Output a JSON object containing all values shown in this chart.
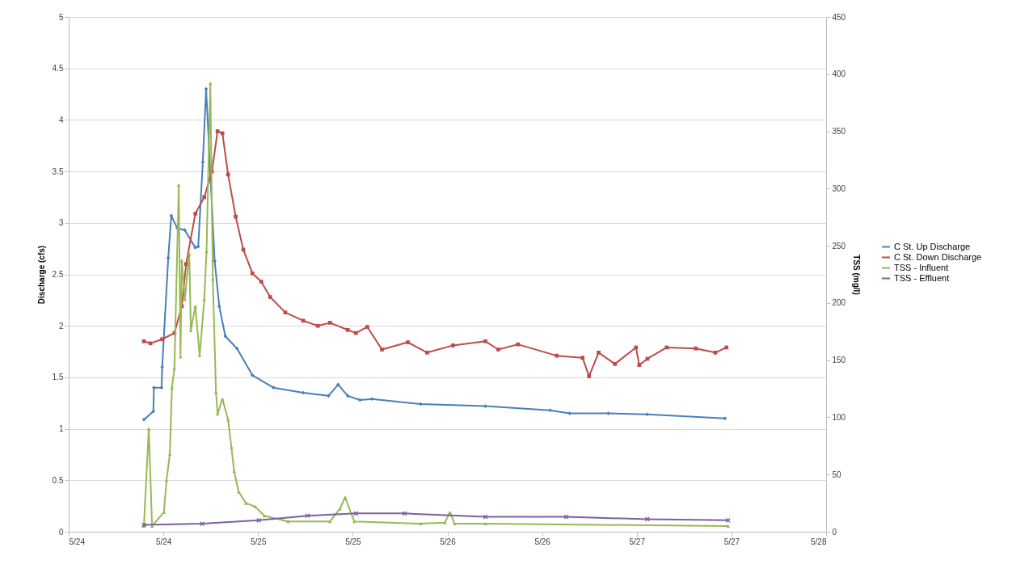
{
  "chart_data": {
    "type": "line",
    "ylabel": "Discharge (cfs)",
    "y2label": "TSS (mg/l)",
    "xlim": [
      "--05-24",
      "--05-28"
    ],
    "xticks": [
      {
        "value": "--05-24",
        "label": "5/24"
      },
      {
        "value": "--05-24T12:00",
        "label": "5/24"
      },
      {
        "value": "--05-25",
        "label": "5/25"
      },
      {
        "value": "--05-25T12:00",
        "label": "5/25"
      },
      {
        "value": "--05-26",
        "label": "5/26"
      },
      {
        "value": "--05-26T12:00",
        "label": "5/26"
      },
      {
        "value": "--05-27",
        "label": "5/27"
      },
      {
        "value": "--05-27T12:00",
        "label": "5/27"
      },
      {
        "value": "--05-28",
        "label": "5/28"
      }
    ],
    "ylim": [
      0,
      5
    ],
    "yticks": [
      0,
      0.5,
      1,
      1.5,
      2,
      2.5,
      3,
      3.5,
      4,
      4.5,
      5
    ],
    "y2lim": [
      0,
      450
    ],
    "y2ticks": [
      0,
      50,
      100,
      150,
      200,
      250,
      300,
      350,
      400,
      450
    ],
    "grid": "y",
    "legend": "right",
    "series": [
      {
        "name": "C St. Up Discharge",
        "color": "#4a7ebb",
        "marker": "diamond",
        "x": [
          "--05-24T09:32",
          "--05-24T10:44",
          "--05-24T10:48",
          "--05-24T11:46",
          "--05-24T11:51",
          "--05-24T12:37",
          "--05-24T13:00",
          "--05-24T13:45",
          "--05-24T14:43",
          "--05-24T16:03",
          "--05-24T16:25",
          "--05-24T17:00",
          "--05-24T17:25",
          "--05-24T18:30",
          "--05-24T19:05",
          "--05-24T19:51",
          "--05-24T21:20",
          "--05-24T23:17",
          "--05-25T01:57",
          "--05-25T05:44",
          "--05-25T08:56",
          "--05-25T10:09",
          "--05-25T11:22",
          "--05-25T12:55",
          "--05-25T14:28",
          "--05-25T20:37",
          "--05-26T04:49",
          "--05-26T13:02",
          "--05-26T15:29",
          "--05-26T20:24",
          "--05-27T01:21",
          "--05-27T11:11"
        ],
        "values": [
          1.09,
          1.17,
          1.4,
          1.4,
          1.6,
          2.66,
          3.07,
          2.95,
          2.93,
          2.76,
          2.77,
          3.59,
          4.3,
          2.63,
          2.19,
          1.9,
          1.78,
          1.52,
          1.4,
          1.35,
          1.32,
          1.43,
          1.32,
          1.28,
          1.29,
          1.24,
          1.22,
          1.18,
          1.15,
          1.15,
          1.14,
          1.1
        ]
      },
      {
        "name": "C St. Down Discharge",
        "color": "#be4b48",
        "marker": "square",
        "x": [
          "--05-24T09:32",
          "--05-24T10:22",
          "--05-24T11:51",
          "--05-24T13:24",
          "--05-24T14:20",
          "--05-24T14:53",
          "--05-24T16:03",
          "--05-24T17:11",
          "--05-24T18:09",
          "--05-24T18:52",
          "--05-24T19:29",
          "--05-24T20:12",
          "--05-24T21:10",
          "--05-24T22:08",
          "--05-24T23:17",
          "--05-25T00:24",
          "--05-25T01:32",
          "--05-25T03:27",
          "--05-25T05:44",
          "--05-25T07:35",
          "--05-25T09:07",
          "--05-25T11:22",
          "--05-25T12:24",
          "--05-25T13:51",
          "--05-25T15:42",
          "--05-25T18:59",
          "--05-25T21:26",
          "--05-26T00:43",
          "--05-26T04:49",
          "--05-26T06:27",
          "--05-26T08:56",
          "--05-26T13:51",
          "--05-26T17:08",
          "--05-26T17:57",
          "--05-26T19:10",
          "--05-26T21:14",
          "--05-26T23:54",
          "--05-27T00:19",
          "--05-27T01:21",
          "--05-27T03:48",
          "--05-27T07:29",
          "--05-27T09:58",
          "--05-27T11:22"
        ],
        "values": [
          1.85,
          1.83,
          1.87,
          1.93,
          2.19,
          2.6,
          3.09,
          3.25,
          3.5,
          3.89,
          3.87,
          3.47,
          3.06,
          2.74,
          2.51,
          2.43,
          2.28,
          2.13,
          2.05,
          2.0,
          2.03,
          1.96,
          1.93,
          1.99,
          1.77,
          1.84,
          1.74,
          1.81,
          1.85,
          1.77,
          1.82,
          1.71,
          1.69,
          1.51,
          1.74,
          1.63,
          1.79,
          1.62,
          1.68,
          1.79,
          1.78,
          1.74,
          1.79
        ]
      },
      {
        "name": "TSS - Influent",
        "color": "#98b954",
        "marker": "triangle",
        "axis": "y2",
        "x": [
          "--05-24T09:32",
          "--05-24T10:09",
          "--05-24T10:34",
          "--05-24T12:04",
          "--05-24T12:24",
          "--05-24T12:49",
          "--05-24T13:05",
          "--05-24T13:24",
          "--05-24T13:57",
          "--05-24T14:10",
          "--05-24T14:20",
          "--05-24T14:43",
          "--05-24T15:17",
          "--05-24T15:29",
          "--05-24T16:03",
          "--05-24T16:36",
          "--05-24T17:11",
          "--05-24T17:28",
          "--05-24T17:57",
          "--05-24T18:16",
          "--05-24T18:40",
          "--05-24T18:52",
          "--05-24T19:29",
          "--05-24T20:12",
          "--05-24T20:37",
          "--05-24T20:58",
          "--05-24T21:32",
          "--05-24T22:28",
          "--05-24T23:38",
          "--05-25T00:48",
          "--05-25T03:48",
          "--05-25T09:07",
          "--05-25T10:22",
          "--05-25T11:02",
          "--05-25T12:12",
          "--05-25T20:37",
          "--05-25T23:41",
          "--05-26T00:19",
          "--05-26T00:55",
          "--05-26T04:49",
          "--05-27T11:35"
        ],
        "values": [
          5,
          90,
          5,
          17,
          45,
          68,
          126,
          143,
          303,
          153,
          237,
          203,
          243,
          176,
          197,
          154,
          203,
          245,
          392,
          221,
          122,
          103,
          116,
          98,
          74,
          53,
          35,
          25,
          22,
          14,
          9,
          9,
          20,
          30,
          9,
          7,
          8,
          17,
          7,
          7,
          5
        ]
      },
      {
        "name": "TSS - Effluent",
        "color": "#7d60a0",
        "marker": "cross",
        "axis": "y2",
        "x": [
          "--05-24T09:32",
          "--05-24T16:55",
          "--05-25T00:06",
          "--05-25T06:16",
          "--05-25T12:24",
          "--05-25T18:34",
          "--05-26T04:49",
          "--05-26T15:04",
          "--05-27T01:21",
          "--05-27T11:35"
        ],
        "values": [
          6,
          7,
          10,
          14,
          16,
          16,
          13,
          13,
          11,
          10
        ]
      }
    ]
  }
}
